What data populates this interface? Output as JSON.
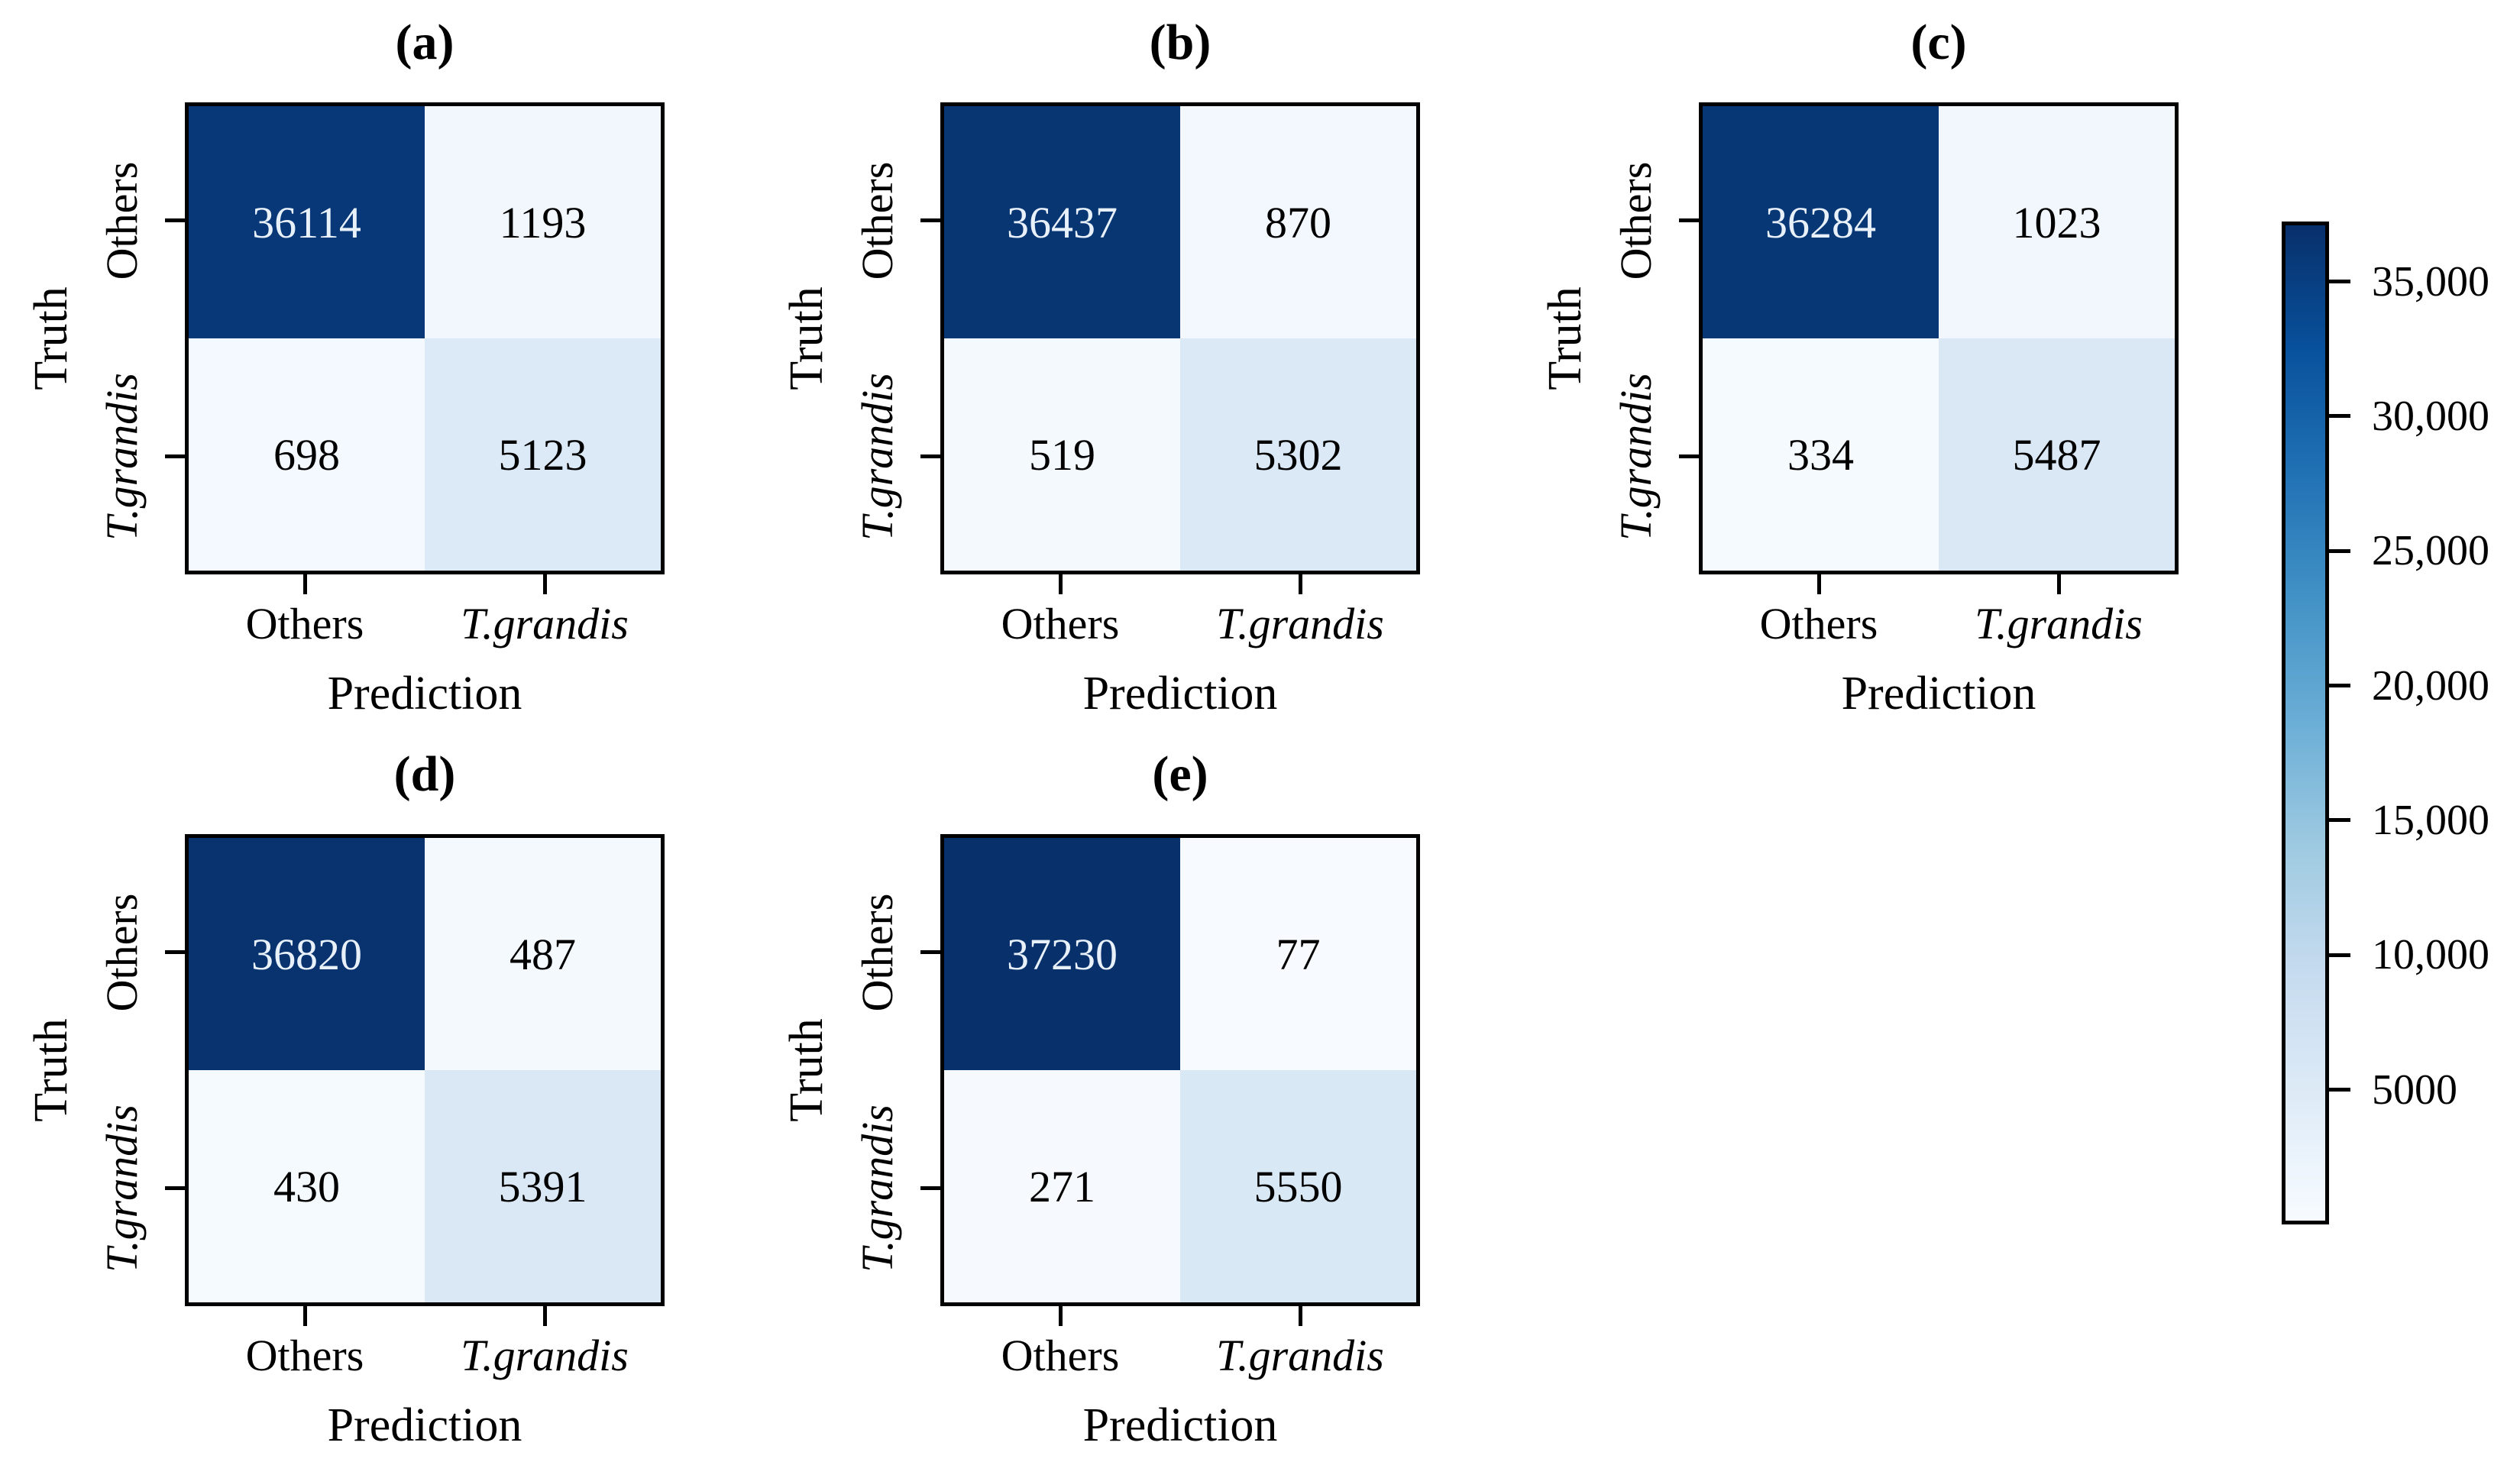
{
  "figure": {
    "background_color": "#ffffff",
    "axis_color": "#000000",
    "text_color": "#000000",
    "dark_cell_text_color": "#e8f1fa"
  },
  "chart_data": {
    "type": "heatmap",
    "colormap": "Blues",
    "colormap_anchors": [
      {
        "t": 0.0,
        "hex": "#f7fbff"
      },
      {
        "t": 0.125,
        "hex": "#deebf7"
      },
      {
        "t": 0.25,
        "hex": "#c6dbef"
      },
      {
        "t": 0.375,
        "hex": "#9ecae1"
      },
      {
        "t": 0.5,
        "hex": "#6baed6"
      },
      {
        "t": 0.625,
        "hex": "#4292c6"
      },
      {
        "t": 0.75,
        "hex": "#2171b5"
      },
      {
        "t": 0.875,
        "hex": "#08519c"
      },
      {
        "t": 1.0,
        "hex": "#08306b"
      }
    ],
    "norm": {
      "vmin": 0,
      "vmax": 37230
    },
    "x_axis_label": "Prediction",
    "y_axis_label": "Truth",
    "x_categories": [
      {
        "text": "Others",
        "italic": false
      },
      {
        "text": "T.grandis",
        "italic": true
      }
    ],
    "y_categories": [
      {
        "text": "Others",
        "italic": false
      },
      {
        "text": "T.grandis",
        "italic": true
      }
    ],
    "subplots": [
      {
        "title": "(a)",
        "values": [
          [
            36114,
            1193
          ],
          [
            698,
            5123
          ]
        ]
      },
      {
        "title": "(b)",
        "values": [
          [
            36437,
            870
          ],
          [
            519,
            5302
          ]
        ]
      },
      {
        "title": "(c)",
        "values": [
          [
            36284,
            1023
          ],
          [
            334,
            5487
          ]
        ]
      },
      {
        "title": "(d)",
        "values": [
          [
            36820,
            487
          ],
          [
            430,
            5391
          ]
        ]
      },
      {
        "title": "(e)",
        "values": [
          [
            37230,
            77
          ],
          [
            271,
            5550
          ]
        ]
      }
    ],
    "colorbar": {
      "orientation": "vertical",
      "ticks": [
        {
          "value": 35000,
          "label": "35,000"
        },
        {
          "value": 30000,
          "label": "30,000"
        },
        {
          "value": 25000,
          "label": "25,000"
        },
        {
          "value": 20000,
          "label": "20,000"
        },
        {
          "value": 15000,
          "label": "15,000"
        },
        {
          "value": 10000,
          "label": "10,000"
        },
        {
          "value": 5000,
          "label": "5000"
        }
      ]
    }
  }
}
